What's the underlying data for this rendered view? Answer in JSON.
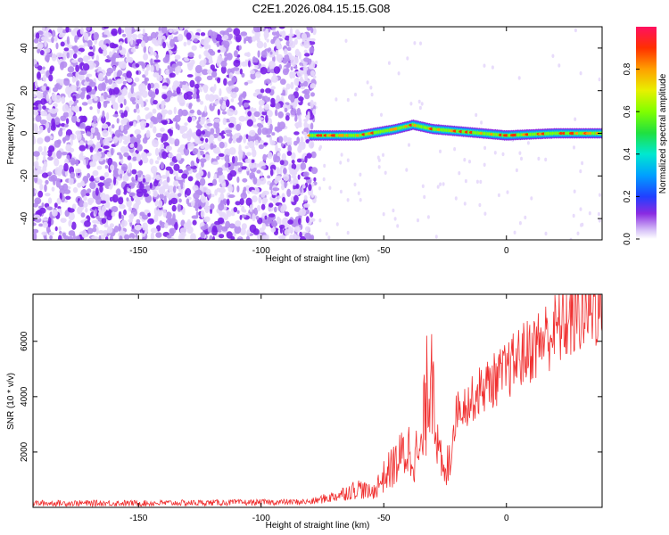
{
  "title": "C2E1.2026.084.15.15.G08",
  "chart_data": [
    {
      "type": "heatmap",
      "xlabel": "Height of straight line (km)",
      "ylabel": "Frequency (Hz)",
      "xlim": [
        -193,
        39
      ],
      "ylim": [
        -50,
        50
      ],
      "xticks": [
        -150,
        -100,
        -50,
        0
      ],
      "yticks": [
        -40,
        -20,
        0,
        20,
        40
      ],
      "colorbar": {
        "label": "Normalized spectral amplitude",
        "range": [
          0.0,
          1.0
        ],
        "ticks": [
          0.0,
          0.2,
          0.4,
          0.6,
          0.8
        ]
      },
      "noise_region_x": [
        -193,
        -80
      ],
      "ridge": {
        "description_points_x": [
          -80,
          -60,
          -45,
          -38,
          -30,
          -20,
          -10,
          0,
          20,
          39
        ],
        "freq_hz": [
          -1,
          -1,
          2,
          4,
          2,
          1,
          0,
          -1,
          0,
          0
        ],
        "peak_amplitude": 0.95
      }
    },
    {
      "type": "line",
      "xlabel": "Height of straight line (km)",
      "ylabel": "SNR (10 * v/v)",
      "xlim": [
        -193,
        39
      ],
      "ylim": [
        0,
        7700
      ],
      "xticks": [
        -150,
        -100,
        -50,
        0
      ],
      "yticks": [
        2000,
        4000,
        6000
      ],
      "color": "#f03030",
      "series": [
        {
          "name": "SNR",
          "x": [
            -193,
            -150,
            -100,
            -80,
            -70,
            -60,
            -55,
            -50,
            -45,
            -40,
            -35,
            -32,
            -30,
            -28,
            -25,
            -22,
            -20,
            -15,
            -10,
            -5,
            0,
            5,
            10,
            15,
            20,
            25,
            30,
            35,
            39
          ],
          "y": [
            150,
            150,
            180,
            200,
            400,
            700,
            500,
            1100,
            1600,
            2100,
            1800,
            4500,
            5800,
            2000,
            1000,
            2600,
            3600,
            3800,
            4300,
            4600,
            4900,
            5400,
            5700,
            6100,
            6400,
            6700,
            7000,
            7200,
            7400
          ]
        }
      ]
    }
  ]
}
